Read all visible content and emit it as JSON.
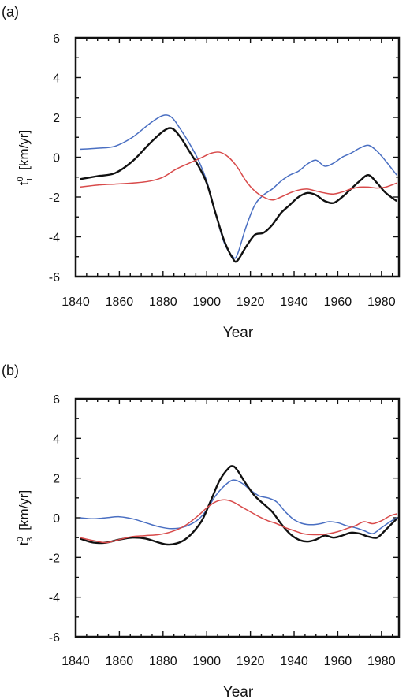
{
  "chart_data": [
    {
      "type": "line",
      "panel_label": "(a)",
      "xlabel": "Year",
      "ylabel": {
        "symbol": "t",
        "sup": "0",
        "sub": "1",
        "units": "[km/yr]"
      },
      "xlim": [
        1840,
        1988
      ],
      "ylim": [
        -6,
        6
      ],
      "xticks": [
        "1840",
        "1860",
        "1880",
        "1900",
        "1920",
        "1940",
        "1960",
        "1980"
      ],
      "yticks": [
        "6",
        "4",
        "2",
        "0",
        "-2",
        "-4",
        "-6"
      ],
      "grid": false,
      "legend": "none",
      "series": [
        {
          "color": "#4a6fc2",
          "x": [
            1842,
            1850,
            1858,
            1866,
            1874,
            1880,
            1884,
            1888,
            1892,
            1896,
            1900,
            1904,
            1908,
            1912,
            1914,
            1918,
            1922,
            1926,
            1930,
            1934,
            1938,
            1942,
            1946,
            1950,
            1954,
            1958,
            1962,
            1966,
            1970,
            1974,
            1978,
            1982,
            1987
          ],
          "y": [
            0.4,
            0.45,
            0.55,
            1.0,
            1.7,
            2.1,
            2.0,
            1.4,
            0.7,
            -0.1,
            -1.2,
            -2.8,
            -4.3,
            -5.0,
            -4.9,
            -3.5,
            -2.4,
            -1.9,
            -1.6,
            -1.2,
            -0.9,
            -0.7,
            -0.35,
            -0.15,
            -0.45,
            -0.3,
            0.0,
            0.2,
            0.45,
            0.6,
            0.3,
            -0.2,
            -0.9
          ]
        },
        {
          "color": "#111111",
          "x": [
            1842,
            1850,
            1858,
            1866,
            1874,
            1880,
            1884,
            1888,
            1892,
            1896,
            1900,
            1904,
            1908,
            1912,
            1914,
            1918,
            1922,
            1926,
            1930,
            1934,
            1938,
            1942,
            1946,
            1950,
            1954,
            1958,
            1962,
            1966,
            1970,
            1974,
            1978,
            1982,
            1987
          ],
          "y": [
            -1.1,
            -0.95,
            -0.8,
            -0.2,
            0.7,
            1.3,
            1.45,
            1.0,
            0.3,
            -0.4,
            -1.3,
            -2.8,
            -4.2,
            -5.1,
            -5.2,
            -4.5,
            -3.9,
            -3.8,
            -3.4,
            -2.8,
            -2.4,
            -2.0,
            -1.8,
            -1.9,
            -2.2,
            -2.3,
            -2.0,
            -1.6,
            -1.2,
            -0.9,
            -1.3,
            -1.8,
            -2.2
          ]
        },
        {
          "color": "#d84a4a",
          "x": [
            1842,
            1850,
            1858,
            1866,
            1874,
            1880,
            1886,
            1892,
            1898,
            1902,
            1906,
            1910,
            1914,
            1918,
            1922,
            1926,
            1930,
            1934,
            1938,
            1942,
            1946,
            1950,
            1954,
            1958,
            1962,
            1966,
            1970,
            1974,
            1978,
            1982,
            1987
          ],
          "y": [
            -1.5,
            -1.4,
            -1.35,
            -1.3,
            -1.2,
            -1.0,
            -0.6,
            -0.3,
            0.0,
            0.2,
            0.25,
            0.0,
            -0.5,
            -1.2,
            -1.7,
            -2.0,
            -2.15,
            -2.0,
            -1.8,
            -1.65,
            -1.6,
            -1.7,
            -1.8,
            -1.85,
            -1.75,
            -1.6,
            -1.5,
            -1.5,
            -1.55,
            -1.5,
            -1.3
          ]
        }
      ]
    },
    {
      "type": "line",
      "panel_label": "(b)",
      "xlabel": "Year",
      "ylabel": {
        "symbol": "t",
        "sup": "0",
        "sub": "3",
        "units": "[km/yr]"
      },
      "xlim": [
        1840,
        1988
      ],
      "ylim": [
        -6,
        6
      ],
      "xticks": [
        "1840",
        "1860",
        "1880",
        "1900",
        "1920",
        "1940",
        "1960",
        "1980"
      ],
      "yticks": [
        "6",
        "4",
        "2",
        "0",
        "-2",
        "-4",
        "-6"
      ],
      "grid": false,
      "legend": "none",
      "series": [
        {
          "color": "#4a6fc2",
          "x": [
            1842,
            1848,
            1854,
            1860,
            1866,
            1872,
            1878,
            1884,
            1890,
            1896,
            1900,
            1904,
            1908,
            1912,
            1916,
            1920,
            1924,
            1928,
            1932,
            1936,
            1940,
            1944,
            1948,
            1952,
            1956,
            1960,
            1964,
            1968,
            1972,
            1976,
            1980,
            1984,
            1987
          ],
          "y": [
            0.0,
            -0.05,
            0.0,
            0.05,
            -0.05,
            -0.25,
            -0.45,
            -0.55,
            -0.45,
            -0.1,
            0.4,
            1.1,
            1.6,
            1.9,
            1.75,
            1.4,
            1.1,
            1.0,
            0.8,
            0.3,
            -0.1,
            -0.3,
            -0.35,
            -0.3,
            -0.2,
            -0.25,
            -0.4,
            -0.5,
            -0.65,
            -0.8,
            -0.5,
            -0.2,
            0.0
          ]
        },
        {
          "color": "#111111",
          "x": [
            1842,
            1848,
            1854,
            1860,
            1866,
            1872,
            1878,
            1882,
            1886,
            1890,
            1894,
            1898,
            1902,
            1906,
            1910,
            1912,
            1914,
            1918,
            1922,
            1926,
            1930,
            1934,
            1938,
            1942,
            1946,
            1950,
            1954,
            1958,
            1962,
            1966,
            1970,
            1974,
            1978,
            1982,
            1987
          ],
          "y": [
            -1.05,
            -1.25,
            -1.25,
            -1.1,
            -1.0,
            -1.05,
            -1.25,
            -1.35,
            -1.3,
            -1.1,
            -0.7,
            -0.1,
            0.9,
            1.9,
            2.5,
            2.6,
            2.4,
            1.7,
            1.1,
            0.7,
            0.3,
            -0.3,
            -0.8,
            -1.1,
            -1.2,
            -1.1,
            -0.9,
            -1.0,
            -0.9,
            -0.75,
            -0.8,
            -0.95,
            -1.0,
            -0.6,
            -0.05
          ]
        },
        {
          "color": "#d84a4a",
          "x": [
            1842,
            1848,
            1854,
            1860,
            1866,
            1872,
            1878,
            1884,
            1890,
            1896,
            1900,
            1904,
            1908,
            1912,
            1916,
            1920,
            1924,
            1928,
            1932,
            1936,
            1940,
            1944,
            1948,
            1952,
            1956,
            1960,
            1964,
            1968,
            1972,
            1976,
            1980,
            1984,
            1987
          ],
          "y": [
            -1.0,
            -1.15,
            -1.25,
            -1.1,
            -0.95,
            -0.9,
            -0.85,
            -0.7,
            -0.4,
            0.1,
            0.5,
            0.8,
            0.9,
            0.8,
            0.55,
            0.3,
            0.05,
            -0.15,
            -0.3,
            -0.5,
            -0.65,
            -0.8,
            -0.85,
            -0.85,
            -0.8,
            -0.7,
            -0.55,
            -0.4,
            -0.2,
            -0.3,
            -0.15,
            0.1,
            0.2
          ]
        }
      ]
    }
  ]
}
